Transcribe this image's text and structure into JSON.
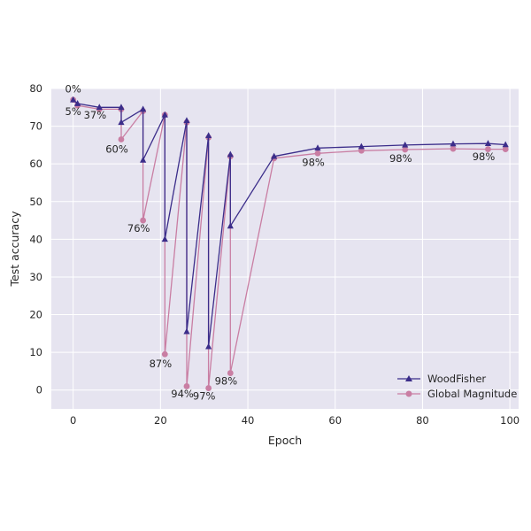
{
  "chart_data": {
    "type": "line",
    "xlabel": "Epoch",
    "ylabel": "Test accuracy",
    "xlim": [
      -5,
      102
    ],
    "ylim": [
      -5,
      80
    ],
    "xticks": [
      0,
      20,
      40,
      60,
      80,
      100
    ],
    "yticks": [
      0,
      10,
      20,
      30,
      40,
      50,
      60,
      70,
      80
    ],
    "grid": true,
    "legend_position": "lower-right",
    "background": "#e6e4f0",
    "series": [
      {
        "name": "WoodFisher",
        "color": "#3b2d8a",
        "marker": "triangle",
        "x": [
          0,
          1,
          6,
          11,
          11,
          16,
          16,
          21,
          21,
          26,
          26,
          31,
          31,
          36,
          36,
          46,
          56,
          66,
          76,
          87,
          95,
          99
        ],
        "y": [
          77,
          76,
          75,
          75,
          71,
          74.5,
          61,
          73,
          40,
          71.5,
          15.5,
          67.5,
          11.5,
          62.5,
          43.5,
          62,
          64.2,
          64.6,
          65,
          65.3,
          65.4,
          65.1
        ]
      },
      {
        "name": "Global Magnitude",
        "color": "#c97ea3",
        "marker": "circle",
        "x": [
          0,
          1,
          6,
          11,
          11,
          16,
          16,
          21,
          21,
          26,
          26,
          31,
          31,
          36,
          36,
          46,
          56,
          66,
          76,
          87,
          95,
          99
        ],
        "y": [
          77,
          75.5,
          74.5,
          74.5,
          66.5,
          74,
          45,
          73,
          9.5,
          71,
          1,
          67,
          0.5,
          62,
          4.5,
          61.5,
          62.8,
          63.5,
          63.8,
          64,
          63.9,
          63.9
        ]
      }
    ],
    "annotations": [
      {
        "text": "0%",
        "x": 0,
        "y": 79
      },
      {
        "text": "5%",
        "x": 0,
        "y": 73
      },
      {
        "text": "37%",
        "x": 5,
        "y": 72
      },
      {
        "text": "60%",
        "x": 10,
        "y": 63
      },
      {
        "text": "76%",
        "x": 15,
        "y": 42
      },
      {
        "text": "87%",
        "x": 20,
        "y": 6
      },
      {
        "text": "94%",
        "x": 25,
        "y": -2
      },
      {
        "text": "97%",
        "x": 30,
        "y": -2.5
      },
      {
        "text": "98%",
        "x": 35,
        "y": 1.5
      },
      {
        "text": "98%",
        "x": 55,
        "y": 59.5
      },
      {
        "text": "98%",
        "x": 75,
        "y": 60.5
      },
      {
        "text": "98%",
        "x": 94,
        "y": 61
      }
    ]
  }
}
